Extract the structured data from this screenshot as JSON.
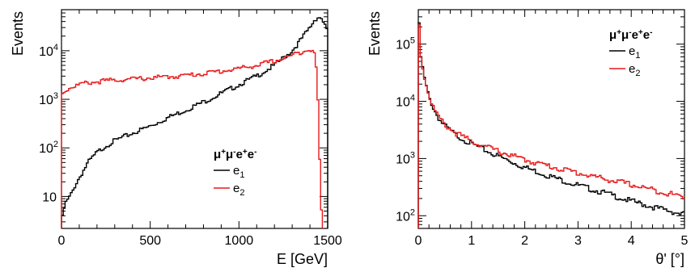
{
  "colors": {
    "e1": "#000000",
    "e2": "#e8191a"
  },
  "chart_data": [
    {
      "type": "line",
      "title": "",
      "xlabel": "E [GeV]",
      "ylabel": "Events",
      "xlim": [
        0,
        1500
      ],
      "ylim": [
        2.2,
        70000
      ],
      "yscale": "log",
      "grid": false,
      "legend_placement": "lower-right",
      "legend_title": "μ+μ-e+e-",
      "legend_title_parts": [
        "μ",
        "+",
        "μ",
        "-",
        "e",
        "+",
        "e",
        "-"
      ],
      "x_tick_labels": [
        "0",
        "500",
        "1000",
        "1500"
      ],
      "x_ticks": [
        0,
        500,
        1000,
        1500
      ],
      "y_tick_labels": [
        {
          "v": 10,
          "base": "10",
          "exp": ""
        },
        {
          "v": 100,
          "base": "10",
          "exp": "2"
        },
        {
          "v": 1000,
          "base": "10",
          "exp": "3"
        },
        {
          "v": 10000,
          "base": "10",
          "exp": "4"
        }
      ],
      "series": [
        {
          "name": "e1",
          "label_base": "e",
          "label_sub": "1",
          "color": "#000000",
          "x": [
            0,
            20,
            40,
            60,
            80,
            100,
            150,
            200,
            250,
            300,
            400,
            500,
            600,
            700,
            800,
            900,
            1000,
            1100,
            1200,
            1300,
            1350,
            1400,
            1430,
            1450,
            1470,
            1490,
            1500
          ],
          "y": [
            3,
            7,
            9,
            12,
            18,
            24,
            50,
            80,
            110,
            140,
            200,
            280,
            420,
            600,
            880,
            1320,
            2000,
            3000,
            5000,
            10000,
            17000,
            30000,
            45000,
            50000,
            45000,
            30000,
            22000
          ]
        },
        {
          "name": "e2",
          "label_base": "e",
          "label_sub": "2",
          "color": "#e8191a",
          "x": [
            0,
            10,
            30,
            60,
            100,
            150,
            200,
            300,
            400,
            500,
            600,
            700,
            800,
            900,
            1000,
            1100,
            1200,
            1300,
            1350,
            1380,
            1400,
            1410,
            1420,
            1430,
            1440,
            1450,
            1460,
            1470
          ],
          "y": [
            1300,
            1400,
            1600,
            1800,
            2000,
            2200,
            2300,
            2500,
            2600,
            2750,
            2900,
            3100,
            3400,
            3800,
            4300,
            5000,
            6100,
            8000,
            9500,
            10500,
            11000,
            10500,
            9500,
            7000,
            3000,
            300,
            10,
            2.5
          ]
        }
      ]
    },
    {
      "type": "line",
      "title": "",
      "xlabel": "θ' [°]",
      "ylabel": "Events",
      "xlim": [
        0,
        5
      ],
      "ylim": [
        60,
        400000
      ],
      "yscale": "log",
      "grid": false,
      "legend_placement": "top-right",
      "legend_title": "μ+μ-e+e-",
      "legend_title_parts": [
        "μ",
        "+",
        "μ",
        "-",
        "e",
        "+",
        "e",
        "-"
      ],
      "x_tick_labels": [
        "0",
        "1",
        "2",
        "3",
        "4",
        "5"
      ],
      "x_ticks": [
        0,
        1,
        2,
        3,
        4,
        5
      ],
      "y_tick_labels": [
        {
          "v": 100,
          "base": "10",
          "exp": "2"
        },
        {
          "v": 1000,
          "base": "10",
          "exp": "3"
        },
        {
          "v": 10000,
          "base": "10",
          "exp": "4"
        },
        {
          "v": 100000,
          "base": "10",
          "exp": "5"
        }
      ],
      "series": [
        {
          "name": "e1",
          "label_base": "e",
          "label_sub": "1",
          "color": "#000000",
          "x": [
            0.0,
            0.02,
            0.05,
            0.1,
            0.15,
            0.2,
            0.3,
            0.4,
            0.5,
            0.7,
            1.0,
            1.5,
            2.0,
            2.5,
            3.0,
            3.5,
            4.0,
            4.5,
            5.0
          ],
          "y": [
            280000,
            200000,
            60000,
            30000,
            18000,
            12000,
            7000,
            4800,
            3700,
            2600,
            1800,
            1100,
            700,
            480,
            340,
            250,
            180,
            135,
            105
          ]
        },
        {
          "name": "e2",
          "label_base": "e",
          "label_sub": "2",
          "color": "#e8191a",
          "x": [
            0.0,
            0.02,
            0.05,
            0.1,
            0.15,
            0.2,
            0.3,
            0.4,
            0.5,
            0.7,
            1.0,
            1.5,
            2.0,
            2.5,
            3.0,
            3.5,
            4.0,
            4.5,
            5.0
          ],
          "y": [
            300000,
            210000,
            62000,
            31000,
            19000,
            12500,
            7300,
            5000,
            3900,
            2800,
            2000,
            1350,
            950,
            720,
            560,
            440,
            350,
            270,
            210
          ]
        }
      ]
    }
  ]
}
